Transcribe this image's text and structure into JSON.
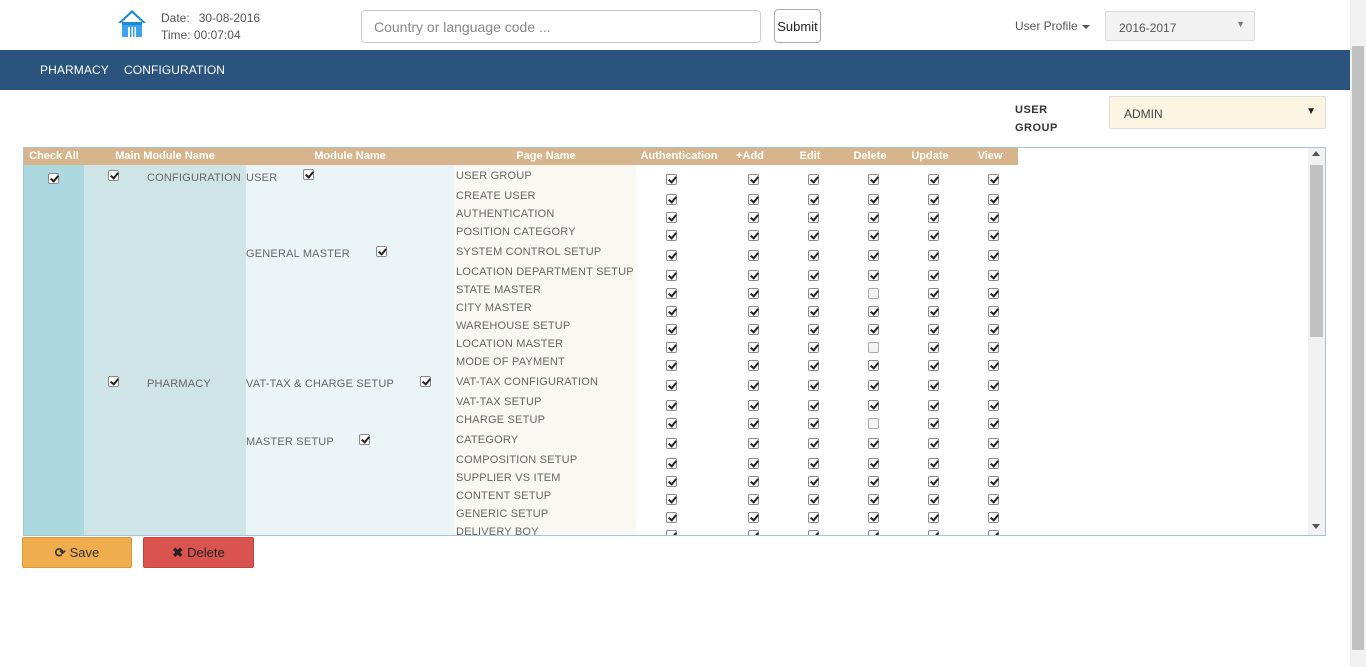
{
  "header": {
    "date_label": "Date:",
    "date_value": "30-08-2016",
    "time_label": "Time:",
    "time_value": "00:07:04",
    "search_placeholder": "Country or language code ...",
    "search_value": "",
    "submit_label": "Submit",
    "user_profile_label": "User Profile",
    "year_value": "2016-2017"
  },
  "nav": {
    "items": [
      "PHARMACY",
      "CONFIGURATION"
    ]
  },
  "user_group": {
    "label_line1": "USER",
    "label_line2": "GROUP",
    "value": "ADMIN"
  },
  "grid": {
    "columns": [
      "Check All",
      "Main Module Name",
      "Module Name",
      "Page Name",
      "Authentication",
      "+Add",
      "Edit",
      "Delete",
      "Update",
      "View"
    ],
    "check_all": true,
    "main_modules": [
      {
        "name": "CONFIGURATION",
        "checked": true
      },
      {
        "name": "PHARMACY",
        "checked": true
      }
    ],
    "modules": [
      {
        "name": "USER",
        "checked": true
      },
      {
        "name": "GENERAL MASTER",
        "checked": true
      },
      {
        "name": "VAT-TAX & CHARGE SETUP",
        "checked": true
      },
      {
        "name": "MASTER SETUP",
        "checked": true
      }
    ],
    "rows": [
      {
        "page": "USER GROUP",
        "perms": [
          true,
          true,
          true,
          true,
          true,
          true
        ]
      },
      {
        "page": "CREATE USER",
        "perms": [
          true,
          true,
          true,
          true,
          true,
          true
        ]
      },
      {
        "page": "AUTHENTICATION",
        "perms": [
          true,
          true,
          true,
          true,
          true,
          true
        ]
      },
      {
        "page": "POSITION CATEGORY",
        "perms": [
          true,
          true,
          true,
          true,
          true,
          true
        ]
      },
      {
        "page": "SYSTEM CONTROL SETUP",
        "perms": [
          true,
          true,
          true,
          true,
          true,
          true
        ]
      },
      {
        "page": "LOCATION DEPARTMENT SETUP",
        "perms": [
          true,
          true,
          true,
          true,
          true,
          true
        ]
      },
      {
        "page": "STATE MASTER",
        "perms": [
          true,
          true,
          true,
          false,
          true,
          true
        ]
      },
      {
        "page": "CITY MASTER",
        "perms": [
          true,
          true,
          true,
          true,
          true,
          true
        ]
      },
      {
        "page": "WAREHOUSE SETUP",
        "perms": [
          true,
          true,
          true,
          true,
          true,
          true
        ]
      },
      {
        "page": "LOCATION MASTER",
        "perms": [
          true,
          true,
          true,
          false,
          true,
          true
        ]
      },
      {
        "page": "MODE OF PAYMENT",
        "perms": [
          true,
          true,
          true,
          true,
          true,
          true
        ]
      },
      {
        "page": "VAT-TAX CONFIGURATION",
        "perms": [
          true,
          true,
          true,
          true,
          true,
          true
        ]
      },
      {
        "page": "VAT-TAX SETUP",
        "perms": [
          true,
          true,
          true,
          true,
          true,
          true
        ]
      },
      {
        "page": "CHARGE SETUP",
        "perms": [
          true,
          true,
          true,
          false,
          true,
          true
        ]
      },
      {
        "page": "CATEGORY",
        "perms": [
          true,
          true,
          true,
          true,
          true,
          true
        ]
      },
      {
        "page": "COMPOSITION SETUP",
        "perms": [
          true,
          true,
          true,
          true,
          true,
          true
        ]
      },
      {
        "page": "SUPPLIER VS ITEM",
        "perms": [
          true,
          true,
          true,
          true,
          true,
          true
        ]
      },
      {
        "page": "CONTENT SETUP",
        "perms": [
          true,
          true,
          true,
          true,
          true,
          true
        ]
      },
      {
        "page": "GENERIC SETUP",
        "perms": [
          true,
          true,
          true,
          true,
          true,
          true
        ]
      },
      {
        "page": "DELIVERY BOY",
        "perms": [
          true,
          true,
          true,
          true,
          true,
          true
        ]
      }
    ]
  },
  "actions": {
    "save_label": "Save",
    "delete_label": "Delete"
  }
}
